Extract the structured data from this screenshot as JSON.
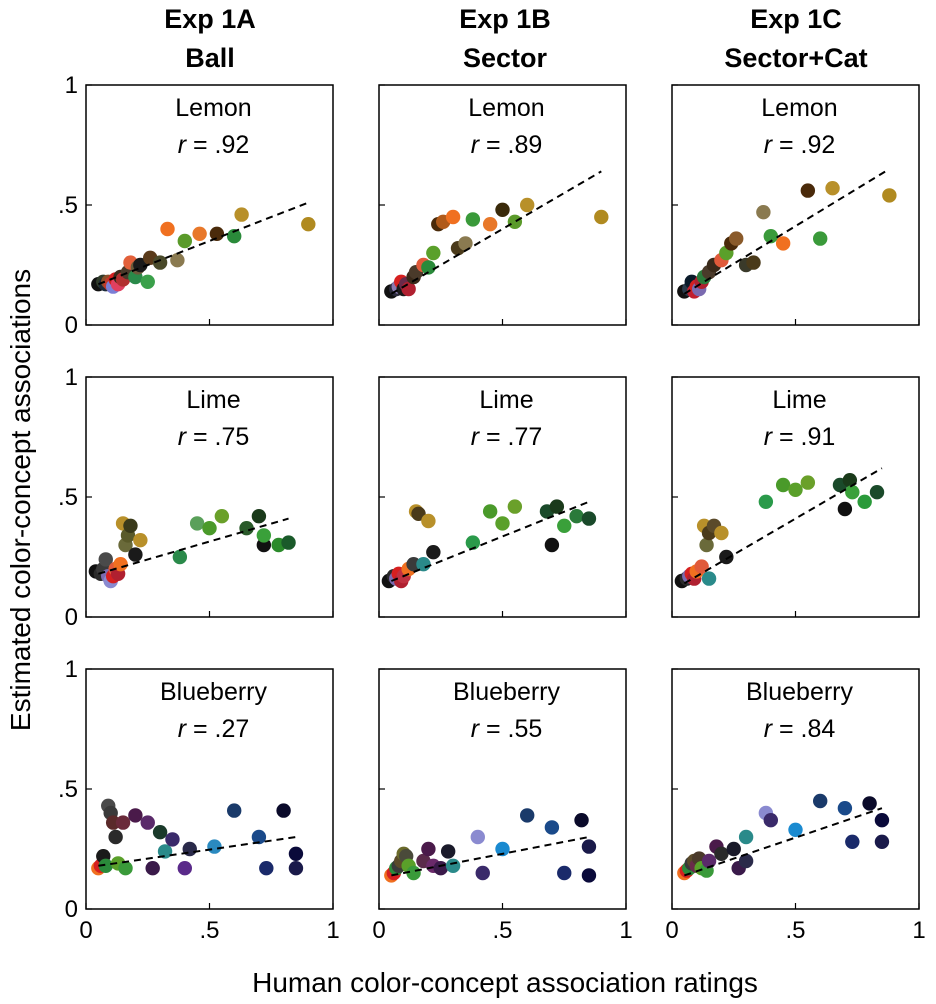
{
  "figure": {
    "ylabel": "Estimated color-concept associations",
    "xlabel": "Human color-concept association ratings",
    "columns": [
      {
        "line1": "Exp 1A",
        "line2": "Ball"
      },
      {
        "line1": "Exp 1B",
        "line2": "Sector"
      },
      {
        "line1": "Exp 1C",
        "line2": "Sector+Cat"
      }
    ],
    "y_ticks": [
      "0",
      ".5",
      "1"
    ],
    "x_ticks": [
      "0",
      ".5",
      "1"
    ]
  },
  "chart_data": [
    {
      "type": "scatter",
      "experiment": "Exp 1A",
      "concept": "Lemon",
      "r_label": "r",
      "r_value": "= .92",
      "xlim": [
        0,
        1
      ],
      "ylim": [
        0,
        1
      ],
      "trend": [
        [
          0.05,
          0.17
        ],
        [
          0.9,
          0.51
        ]
      ],
      "points": [
        [
          0.05,
          0.17,
          "#111111"
        ],
        [
          0.07,
          0.18,
          "#2f3b2a"
        ],
        [
          0.08,
          0.17,
          "#1c2a3a"
        ],
        [
          0.09,
          0.18,
          "#8a4f2a"
        ],
        [
          0.1,
          0.17,
          "#c0392b"
        ],
        [
          0.11,
          0.16,
          "#7b7fd6"
        ],
        [
          0.12,
          0.19,
          "#d62020"
        ],
        [
          0.13,
          0.17,
          "#e04060"
        ],
        [
          0.14,
          0.2,
          "#3a2a1a"
        ],
        [
          0.15,
          0.19,
          "#b23030"
        ],
        [
          0.17,
          0.22,
          "#4a3a2a"
        ],
        [
          0.18,
          0.26,
          "#e2603a"
        ],
        [
          0.2,
          0.2,
          "#2a8a4a"
        ],
        [
          0.21,
          0.24,
          "#6a5a3a"
        ],
        [
          0.22,
          0.25,
          "#1a1a1a"
        ],
        [
          0.25,
          0.18,
          "#3aa04a"
        ],
        [
          0.26,
          0.28,
          "#5a3a1a"
        ],
        [
          0.3,
          0.26,
          "#4a4a2a"
        ],
        [
          0.33,
          0.4,
          "#f07020"
        ],
        [
          0.37,
          0.27,
          "#8a7a50"
        ],
        [
          0.4,
          0.35,
          "#5a9a2a"
        ],
        [
          0.46,
          0.38,
          "#e8782a"
        ],
        [
          0.53,
          0.38,
          "#4a2a0a"
        ],
        [
          0.6,
          0.37,
          "#2a8a3a"
        ],
        [
          0.63,
          0.46,
          "#b8902a"
        ],
        [
          0.9,
          0.42,
          "#b08a20"
        ]
      ]
    },
    {
      "type": "scatter",
      "experiment": "Exp 1B",
      "concept": "Lemon",
      "r_label": "r",
      "r_value": "= .89",
      "xlim": [
        0,
        1
      ],
      "ylim": [
        0,
        1
      ],
      "trend": [
        [
          0.05,
          0.13
        ],
        [
          0.9,
          0.64
        ]
      ],
      "points": [
        [
          0.05,
          0.14,
          "#111111"
        ],
        [
          0.07,
          0.15,
          "#2a2a3a"
        ],
        [
          0.08,
          0.16,
          "#8a7ab0"
        ],
        [
          0.09,
          0.18,
          "#d62020"
        ],
        [
          0.1,
          0.15,
          "#1a1a1a"
        ],
        [
          0.11,
          0.17,
          "#6a2a4a"
        ],
        [
          0.12,
          0.15,
          "#b02030"
        ],
        [
          0.14,
          0.2,
          "#3a2a1a"
        ],
        [
          0.15,
          0.22,
          "#4a3a2a"
        ],
        [
          0.18,
          0.25,
          "#e05a3a"
        ],
        [
          0.2,
          0.24,
          "#2a8a3a"
        ],
        [
          0.22,
          0.3,
          "#5aa02a"
        ],
        [
          0.24,
          0.42,
          "#4a2a0a"
        ],
        [
          0.26,
          0.43,
          "#b05a1a"
        ],
        [
          0.3,
          0.45,
          "#f07020"
        ],
        [
          0.32,
          0.32,
          "#4a3a1a"
        ],
        [
          0.35,
          0.34,
          "#8a7a50"
        ],
        [
          0.38,
          0.44,
          "#3a9a3a"
        ],
        [
          0.45,
          0.42,
          "#e8782a"
        ],
        [
          0.5,
          0.48,
          "#3a2a0a"
        ],
        [
          0.55,
          0.43,
          "#5a9a2a"
        ],
        [
          0.6,
          0.5,
          "#b8902a"
        ],
        [
          0.9,
          0.45,
          "#b08a20"
        ]
      ]
    },
    {
      "type": "scatter",
      "experiment": "Exp 1C",
      "concept": "Lemon",
      "r_label": "r",
      "r_value": "= .92",
      "xlim": [
        0,
        1
      ],
      "ylim": [
        0,
        1
      ],
      "trend": [
        [
          0.05,
          0.13
        ],
        [
          0.88,
          0.65
        ]
      ],
      "points": [
        [
          0.05,
          0.14,
          "#111111"
        ],
        [
          0.07,
          0.15,
          "#2a3a4a"
        ],
        [
          0.08,
          0.18,
          "#0a1a2a"
        ],
        [
          0.09,
          0.14,
          "#c02030"
        ],
        [
          0.1,
          0.16,
          "#d62020"
        ],
        [
          0.11,
          0.15,
          "#7a6ab0"
        ],
        [
          0.12,
          0.18,
          "#b02030"
        ],
        [
          0.13,
          0.2,
          "#2a7a3a"
        ],
        [
          0.15,
          0.22,
          "#4a3a2a"
        ],
        [
          0.17,
          0.25,
          "#3a2a1a"
        ],
        [
          0.2,
          0.27,
          "#e05a3a"
        ],
        [
          0.22,
          0.3,
          "#5aa02a"
        ],
        [
          0.24,
          0.34,
          "#4a2a0a"
        ],
        [
          0.26,
          0.36,
          "#8a5a2a"
        ],
        [
          0.3,
          0.25,
          "#3a3a2a"
        ],
        [
          0.33,
          0.26,
          "#4a3a1a"
        ],
        [
          0.37,
          0.47,
          "#8a7a50"
        ],
        [
          0.4,
          0.37,
          "#3a9a3a"
        ],
        [
          0.45,
          0.34,
          "#f07020"
        ],
        [
          0.55,
          0.56,
          "#4a2a0a"
        ],
        [
          0.6,
          0.36,
          "#3a9a3a"
        ],
        [
          0.65,
          0.57,
          "#b8902a"
        ],
        [
          0.88,
          0.54,
          "#b08a20"
        ]
      ]
    },
    {
      "type": "scatter",
      "experiment": "Exp 1A",
      "concept": "Lime",
      "r_label": "r",
      "r_value": "= .75",
      "xlim": [
        0,
        1
      ],
      "ylim": [
        0,
        1
      ],
      "trend": [
        [
          0.05,
          0.18
        ],
        [
          0.82,
          0.41
        ]
      ],
      "points": [
        [
          0.04,
          0.19,
          "#111111"
        ],
        [
          0.06,
          0.18,
          "#2a2a2a"
        ],
        [
          0.07,
          0.2,
          "#3a3a3a"
        ],
        [
          0.08,
          0.24,
          "#4a4a4a"
        ],
        [
          0.09,
          0.17,
          "#7a6ab0"
        ],
        [
          0.1,
          0.15,
          "#8a8ad0"
        ],
        [
          0.11,
          0.17,
          "#d62020"
        ],
        [
          0.12,
          0.2,
          "#e05a3a"
        ],
        [
          0.13,
          0.18,
          "#b02030"
        ],
        [
          0.14,
          0.22,
          "#f07020"
        ],
        [
          0.15,
          0.39,
          "#b8902a"
        ],
        [
          0.16,
          0.3,
          "#6a6a3a"
        ],
        [
          0.17,
          0.34,
          "#5a5a2a"
        ],
        [
          0.18,
          0.38,
          "#3a3a1a"
        ],
        [
          0.2,
          0.26,
          "#1a1a1a"
        ],
        [
          0.22,
          0.32,
          "#b8902a"
        ],
        [
          0.38,
          0.25,
          "#2a8a4a"
        ],
        [
          0.45,
          0.39,
          "#5aa05a"
        ],
        [
          0.5,
          0.37,
          "#4a9a2a"
        ],
        [
          0.55,
          0.42,
          "#6aa02a"
        ],
        [
          0.65,
          0.37,
          "#2a5a2a"
        ],
        [
          0.7,
          0.42,
          "#1a3a1a"
        ],
        [
          0.72,
          0.3,
          "#111111"
        ],
        [
          0.72,
          0.34,
          "#3aa03a"
        ],
        [
          0.78,
          0.3,
          "#2a8a2a"
        ],
        [
          0.82,
          0.31,
          "#1a5a2a"
        ]
      ]
    },
    {
      "type": "scatter",
      "experiment": "Exp 1B",
      "concept": "Lime",
      "r_label": "r",
      "r_value": "= .77",
      "xlim": [
        0,
        1
      ],
      "ylim": [
        0,
        1
      ],
      "trend": [
        [
          0.05,
          0.15
        ],
        [
          0.85,
          0.48
        ]
      ],
      "points": [
        [
          0.04,
          0.15,
          "#111111"
        ],
        [
          0.06,
          0.17,
          "#2a2a2a"
        ],
        [
          0.07,
          0.16,
          "#7a6ab0"
        ],
        [
          0.08,
          0.18,
          "#d62020"
        ],
        [
          0.09,
          0.15,
          "#b02030"
        ],
        [
          0.1,
          0.17,
          "#c03040"
        ],
        [
          0.12,
          0.2,
          "#f07020"
        ],
        [
          0.14,
          0.22,
          "#3a3a3a"
        ],
        [
          0.15,
          0.44,
          "#b8902a"
        ],
        [
          0.16,
          0.43,
          "#4a3a1a"
        ],
        [
          0.18,
          0.22,
          "#2a8a8a"
        ],
        [
          0.2,
          0.4,
          "#b8902a"
        ],
        [
          0.22,
          0.27,
          "#1a1a1a"
        ],
        [
          0.38,
          0.31,
          "#2a9a4a"
        ],
        [
          0.45,
          0.44,
          "#4a9a2a"
        ],
        [
          0.5,
          0.39,
          "#5aa02a"
        ],
        [
          0.55,
          0.46,
          "#6aa02a"
        ],
        [
          0.68,
          0.44,
          "#1a4a2a"
        ],
        [
          0.7,
          0.3,
          "#111111"
        ],
        [
          0.72,
          0.46,
          "#1a3a1a"
        ],
        [
          0.75,
          0.38,
          "#3aa03a"
        ],
        [
          0.8,
          0.42,
          "#2a7a3a"
        ],
        [
          0.85,
          0.41,
          "#1a4a2a"
        ]
      ]
    },
    {
      "type": "scatter",
      "experiment": "Exp 1C",
      "concept": "Lime",
      "r_label": "r",
      "r_value": "= .91",
      "xlim": [
        0,
        1
      ],
      "ylim": [
        0,
        1
      ],
      "trend": [
        [
          0.05,
          0.14
        ],
        [
          0.85,
          0.62
        ]
      ],
      "points": [
        [
          0.04,
          0.15,
          "#111111"
        ],
        [
          0.06,
          0.16,
          "#2a2a2a"
        ],
        [
          0.07,
          0.17,
          "#7a6ab0"
        ],
        [
          0.08,
          0.18,
          "#d62020"
        ],
        [
          0.09,
          0.16,
          "#b02030"
        ],
        [
          0.1,
          0.19,
          "#f07020"
        ],
        [
          0.12,
          0.21,
          "#e05a3a"
        ],
        [
          0.13,
          0.38,
          "#b8902a"
        ],
        [
          0.14,
          0.3,
          "#6a6a3a"
        ],
        [
          0.15,
          0.35,
          "#4a3a1a"
        ],
        [
          0.15,
          0.16,
          "#2a8a8a"
        ],
        [
          0.17,
          0.38,
          "#5a4a2a"
        ],
        [
          0.2,
          0.35,
          "#b8902a"
        ],
        [
          0.22,
          0.25,
          "#1a1a1a"
        ],
        [
          0.38,
          0.48,
          "#2a9a4a"
        ],
        [
          0.45,
          0.55,
          "#4a9a2a"
        ],
        [
          0.5,
          0.53,
          "#5aa02a"
        ],
        [
          0.55,
          0.56,
          "#6aa02a"
        ],
        [
          0.68,
          0.55,
          "#1a4a2a"
        ],
        [
          0.7,
          0.45,
          "#111111"
        ],
        [
          0.72,
          0.57,
          "#1a3a1a"
        ],
        [
          0.73,
          0.52,
          "#3aa03a"
        ],
        [
          0.78,
          0.48,
          "#2a9a3a"
        ],
        [
          0.83,
          0.52,
          "#1a4a2a"
        ]
      ]
    },
    {
      "type": "scatter",
      "experiment": "Exp 1A",
      "concept": "Blueberry",
      "r_label": "r",
      "r_value": "= .27",
      "xlim": [
        0,
        1
      ],
      "ylim": [
        0,
        1
      ],
      "trend": [
        [
          0.05,
          0.18
        ],
        [
          0.85,
          0.3
        ]
      ],
      "points": [
        [
          0.05,
          0.17,
          "#f07020"
        ],
        [
          0.06,
          0.18,
          "#d62020"
        ],
        [
          0.07,
          0.22,
          "#1a1a1a"
        ],
        [
          0.08,
          0.18,
          "#2a8a3a"
        ],
        [
          0.09,
          0.43,
          "#4a4a4a"
        ],
        [
          0.1,
          0.4,
          "#3a3a3a"
        ],
        [
          0.11,
          0.36,
          "#5a2a2a"
        ],
        [
          0.12,
          0.3,
          "#2a2a2a"
        ],
        [
          0.13,
          0.19,
          "#5aa02a"
        ],
        [
          0.15,
          0.36,
          "#6a2a3a"
        ],
        [
          0.16,
          0.17,
          "#3a9a3a"
        ],
        [
          0.2,
          0.39,
          "#4a1a4a"
        ],
        [
          0.25,
          0.36,
          "#5a2a6a"
        ],
        [
          0.27,
          0.17,
          "#3a1a4a"
        ],
        [
          0.3,
          0.32,
          "#1a3a2a"
        ],
        [
          0.32,
          0.24,
          "#2a8a8a"
        ],
        [
          0.35,
          0.29,
          "#3a2a6a"
        ],
        [
          0.4,
          0.17,
          "#5a2a8a"
        ],
        [
          0.42,
          0.25,
          "#2a2a4a"
        ],
        [
          0.52,
          0.26,
          "#2a8ac0"
        ],
        [
          0.6,
          0.41,
          "#1a3a6a"
        ],
        [
          0.7,
          0.3,
          "#1a4a8a"
        ],
        [
          0.73,
          0.17,
          "#1a2a6a"
        ],
        [
          0.8,
          0.41,
          "#0a0a2a"
        ],
        [
          0.85,
          0.23,
          "#0a0a3a"
        ],
        [
          0.85,
          0.17,
          "#1a1a4a"
        ]
      ]
    },
    {
      "type": "scatter",
      "experiment": "Exp 1B",
      "concept": "Blueberry",
      "r_label": "r",
      "r_value": "= .55",
      "xlim": [
        0,
        1
      ],
      "ylim": [
        0,
        1
      ],
      "trend": [
        [
          0.05,
          0.14
        ],
        [
          0.85,
          0.3
        ]
      ],
      "points": [
        [
          0.05,
          0.14,
          "#f07020"
        ],
        [
          0.06,
          0.15,
          "#d62020"
        ],
        [
          0.07,
          0.17,
          "#2a8a3a"
        ],
        [
          0.08,
          0.18,
          "#3a3a3a"
        ],
        [
          0.09,
          0.2,
          "#5a4a2a"
        ],
        [
          0.1,
          0.23,
          "#6a6a2a"
        ],
        [
          0.11,
          0.22,
          "#4a4a3a"
        ],
        [
          0.12,
          0.18,
          "#5aa02a"
        ],
        [
          0.14,
          0.15,
          "#3a9a3a"
        ],
        [
          0.18,
          0.2,
          "#5a2a4a"
        ],
        [
          0.2,
          0.25,
          "#4a1a4a"
        ],
        [
          0.22,
          0.18,
          "#6a2a6a"
        ],
        [
          0.25,
          0.17,
          "#3a1a4a"
        ],
        [
          0.28,
          0.24,
          "#1a1a2a"
        ],
        [
          0.3,
          0.18,
          "#2a8a8a"
        ],
        [
          0.4,
          0.3,
          "#8a8ad0"
        ],
        [
          0.42,
          0.15,
          "#3a2a6a"
        ],
        [
          0.5,
          0.25,
          "#1a8ad0"
        ],
        [
          0.6,
          0.39,
          "#1a3a6a"
        ],
        [
          0.7,
          0.34,
          "#1a4a8a"
        ],
        [
          0.75,
          0.15,
          "#1a2a6a"
        ],
        [
          0.82,
          0.37,
          "#0a0a2a"
        ],
        [
          0.85,
          0.26,
          "#1a1a4a"
        ],
        [
          0.85,
          0.14,
          "#0a0a3a"
        ]
      ]
    },
    {
      "type": "scatter",
      "experiment": "Exp 1C",
      "concept": "Blueberry",
      "r_label": "r",
      "r_value": "= .84",
      "xlim": [
        0,
        1
      ],
      "ylim": [
        0,
        1
      ],
      "trend": [
        [
          0.05,
          0.14
        ],
        [
          0.85,
          0.42
        ]
      ],
      "points": [
        [
          0.05,
          0.15,
          "#f07020"
        ],
        [
          0.06,
          0.16,
          "#d62020"
        ],
        [
          0.07,
          0.17,
          "#2a8a3a"
        ],
        [
          0.08,
          0.19,
          "#3a3a3a"
        ],
        [
          0.09,
          0.2,
          "#5a4a2a"
        ],
        [
          0.1,
          0.18,
          "#6a2a4a"
        ],
        [
          0.11,
          0.21,
          "#4a3a2a"
        ],
        [
          0.12,
          0.17,
          "#5aa02a"
        ],
        [
          0.14,
          0.16,
          "#3a9a3a"
        ],
        [
          0.15,
          0.2,
          "#5a2a6a"
        ],
        [
          0.18,
          0.26,
          "#4a1a4a"
        ],
        [
          0.2,
          0.23,
          "#2a2a2a"
        ],
        [
          0.25,
          0.25,
          "#1a1a2a"
        ],
        [
          0.27,
          0.17,
          "#3a1a4a"
        ],
        [
          0.3,
          0.3,
          "#2a8a8a"
        ],
        [
          0.3,
          0.2,
          "#2a2a4a"
        ],
        [
          0.38,
          0.4,
          "#8a8ad0"
        ],
        [
          0.4,
          0.37,
          "#3a2a6a"
        ],
        [
          0.5,
          0.33,
          "#1a8ad0"
        ],
        [
          0.6,
          0.45,
          "#1a3a6a"
        ],
        [
          0.7,
          0.42,
          "#1a4a8a"
        ],
        [
          0.73,
          0.28,
          "#1a2a6a"
        ],
        [
          0.8,
          0.44,
          "#0a0a2a"
        ],
        [
          0.85,
          0.37,
          "#0a0a3a"
        ],
        [
          0.85,
          0.28,
          "#1a1a4a"
        ]
      ]
    }
  ]
}
